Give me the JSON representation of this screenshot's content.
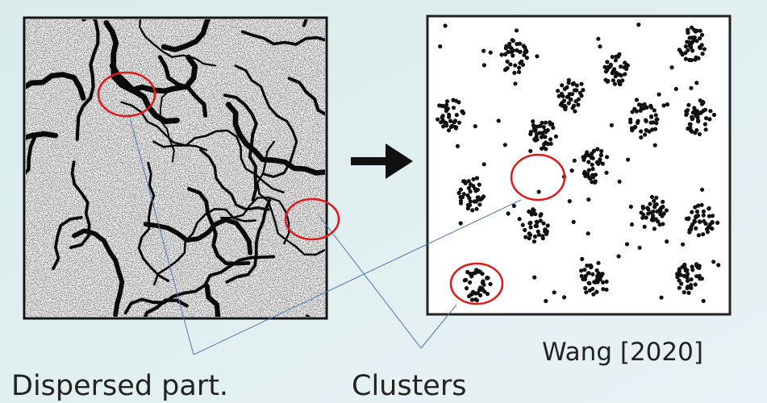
{
  "labels": {
    "dispersed": "Dispersed part.",
    "clusters": "Clusters",
    "citation": "Wang [2020]"
  }
}
